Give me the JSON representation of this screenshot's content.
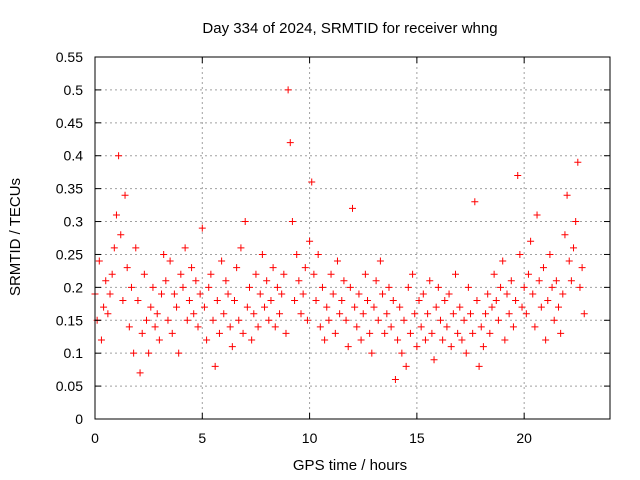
{
  "chart_data": {
    "type": "scatter",
    "title": "Day 334 of 2024, SRMTID for receiver whng",
    "xlabel": "GPS time / hours",
    "ylabel": "SRMTID / TECUs",
    "xlim": [
      0,
      24
    ],
    "ylim": [
      0,
      0.55
    ],
    "grid": true,
    "legend": "none",
    "x_ticks": [
      0,
      5,
      10,
      15,
      20
    ],
    "x_tick_labels": [
      "0",
      "5",
      "10",
      "15",
      "20"
    ],
    "y_ticks": [
      0,
      0.05,
      0.1,
      0.15,
      0.2,
      0.25,
      0.3,
      0.35,
      0.4,
      0.45,
      0.5,
      0.55
    ],
    "y_tick_labels": [
      "0",
      "0.05",
      "0.1",
      "0.15",
      "0.2",
      "0.25",
      "0.3",
      "0.35",
      "0.4",
      "0.45",
      "0.5",
      "0.55"
    ],
    "marker": "+",
    "series": [
      {
        "name": "SRMTID",
        "color": "#ff0000",
        "x": [
          0.0,
          0.1,
          0.2,
          0.3,
          0.4,
          0.5,
          0.6,
          0.7,
          0.8,
          0.9,
          1.0,
          1.1,
          1.2,
          1.3,
          1.4,
          1.5,
          1.6,
          1.7,
          1.8,
          1.9,
          2.0,
          2.1,
          2.2,
          2.3,
          2.4,
          2.5,
          2.6,
          2.7,
          2.8,
          2.9,
          3.0,
          3.1,
          3.2,
          3.3,
          3.4,
          3.5,
          3.6,
          3.7,
          3.8,
          3.9,
          4.0,
          4.1,
          4.2,
          4.3,
          4.4,
          4.5,
          4.6,
          4.7,
          4.8,
          4.9,
          5.0,
          5.1,
          5.2,
          5.3,
          5.4,
          5.5,
          5.6,
          5.7,
          5.8,
          5.9,
          6.0,
          6.1,
          6.2,
          6.3,
          6.4,
          6.5,
          6.6,
          6.7,
          6.8,
          6.9,
          7.0,
          7.1,
          7.2,
          7.3,
          7.4,
          7.5,
          7.6,
          7.7,
          7.8,
          7.9,
          8.0,
          8.1,
          8.2,
          8.3,
          8.4,
          8.5,
          8.6,
          8.7,
          8.8,
          8.9,
          9.0,
          9.1,
          9.2,
          9.3,
          9.4,
          9.5,
          9.6,
          9.7,
          9.8,
          9.9,
          10.0,
          10.1,
          10.2,
          10.3,
          10.4,
          10.5,
          10.6,
          10.7,
          10.8,
          10.9,
          11.0,
          11.1,
          11.2,
          11.3,
          11.4,
          11.5,
          11.6,
          11.7,
          11.8,
          11.9,
          12.0,
          12.1,
          12.2,
          12.3,
          12.4,
          12.5,
          12.6,
          12.7,
          12.8,
          12.9,
          13.0,
          13.1,
          13.2,
          13.3,
          13.4,
          13.5,
          13.6,
          13.7,
          13.8,
          13.9,
          14.0,
          14.1,
          14.2,
          14.3,
          14.4,
          14.5,
          14.6,
          14.7,
          14.8,
          14.9,
          15.0,
          15.1,
          15.2,
          15.3,
          15.4,
          15.5,
          15.6,
          15.7,
          15.8,
          15.9,
          16.0,
          16.1,
          16.2,
          16.3,
          16.4,
          16.5,
          16.6,
          16.7,
          16.8,
          16.9,
          17.0,
          17.1,
          17.2,
          17.3,
          17.4,
          17.5,
          17.6,
          17.7,
          17.8,
          17.9,
          18.0,
          18.1,
          18.2,
          18.3,
          18.4,
          18.5,
          18.6,
          18.7,
          18.8,
          18.9,
          19.0,
          19.1,
          19.2,
          19.3,
          19.4,
          19.5,
          19.6,
          19.7,
          19.8,
          19.9,
          20.0,
          20.1,
          20.2,
          20.3,
          20.4,
          20.5,
          20.6,
          20.7,
          20.8,
          20.9,
          21.0,
          21.1,
          21.2,
          21.3,
          21.4,
          21.5,
          21.6,
          21.7,
          21.8,
          21.9,
          22.0,
          22.1,
          22.2,
          22.3,
          22.4,
          22.5,
          22.6,
          22.7,
          22.8
        ],
        "y": [
          0.19,
          0.15,
          0.24,
          0.12,
          0.17,
          0.21,
          0.16,
          0.19,
          0.22,
          0.26,
          0.31,
          0.4,
          0.28,
          0.18,
          0.34,
          0.23,
          0.14,
          0.2,
          0.1,
          0.26,
          0.18,
          0.07,
          0.13,
          0.22,
          0.15,
          0.1,
          0.17,
          0.2,
          0.14,
          0.16,
          0.12,
          0.19,
          0.25,
          0.21,
          0.15,
          0.24,
          0.13,
          0.19,
          0.17,
          0.1,
          0.22,
          0.2,
          0.26,
          0.15,
          0.18,
          0.23,
          0.16,
          0.21,
          0.14,
          0.19,
          0.29,
          0.17,
          0.12,
          0.2,
          0.22,
          0.15,
          0.08,
          0.18,
          0.13,
          0.24,
          0.16,
          0.21,
          0.19,
          0.14,
          0.11,
          0.18,
          0.23,
          0.15,
          0.26,
          0.13,
          0.3,
          0.17,
          0.2,
          0.12,
          0.16,
          0.22,
          0.14,
          0.19,
          0.25,
          0.17,
          0.21,
          0.15,
          0.18,
          0.23,
          0.14,
          0.2,
          0.16,
          0.19,
          0.22,
          0.13,
          0.5,
          0.42,
          0.3,
          0.18,
          0.25,
          0.21,
          0.16,
          0.19,
          0.23,
          0.15,
          0.27,
          0.36,
          0.22,
          0.18,
          0.25,
          0.14,
          0.2,
          0.12,
          0.17,
          0.15,
          0.22,
          0.19,
          0.13,
          0.24,
          0.16,
          0.18,
          0.21,
          0.15,
          0.11,
          0.2,
          0.32,
          0.17,
          0.14,
          0.19,
          0.12,
          0.16,
          0.22,
          0.18,
          0.13,
          0.1,
          0.17,
          0.21,
          0.15,
          0.24,
          0.19,
          0.13,
          0.16,
          0.2,
          0.14,
          0.18,
          0.06,
          0.12,
          0.17,
          0.1,
          0.15,
          0.08,
          0.2,
          0.13,
          0.22,
          0.16,
          0.11,
          0.18,
          0.14,
          0.19,
          0.12,
          0.16,
          0.21,
          0.13,
          0.09,
          0.17,
          0.2,
          0.15,
          0.12,
          0.18,
          0.14,
          0.19,
          0.11,
          0.16,
          0.22,
          0.13,
          0.17,
          0.12,
          0.15,
          0.1,
          0.2,
          0.16,
          0.13,
          0.33,
          0.18,
          0.08,
          0.14,
          0.11,
          0.16,
          0.19,
          0.13,
          0.17,
          0.22,
          0.18,
          0.15,
          0.2,
          0.24,
          0.12,
          0.19,
          0.16,
          0.21,
          0.14,
          0.18,
          0.37,
          0.25,
          0.17,
          0.2,
          0.16,
          0.22,
          0.27,
          0.19,
          0.14,
          0.31,
          0.21,
          0.17,
          0.23,
          0.12,
          0.18,
          0.25,
          0.2,
          0.15,
          0.21,
          0.17,
          0.13,
          0.19,
          0.28,
          0.34,
          0.24,
          0.21,
          0.26,
          0.3,
          0.39,
          0.2,
          0.23,
          0.16
        ]
      }
    ]
  }
}
